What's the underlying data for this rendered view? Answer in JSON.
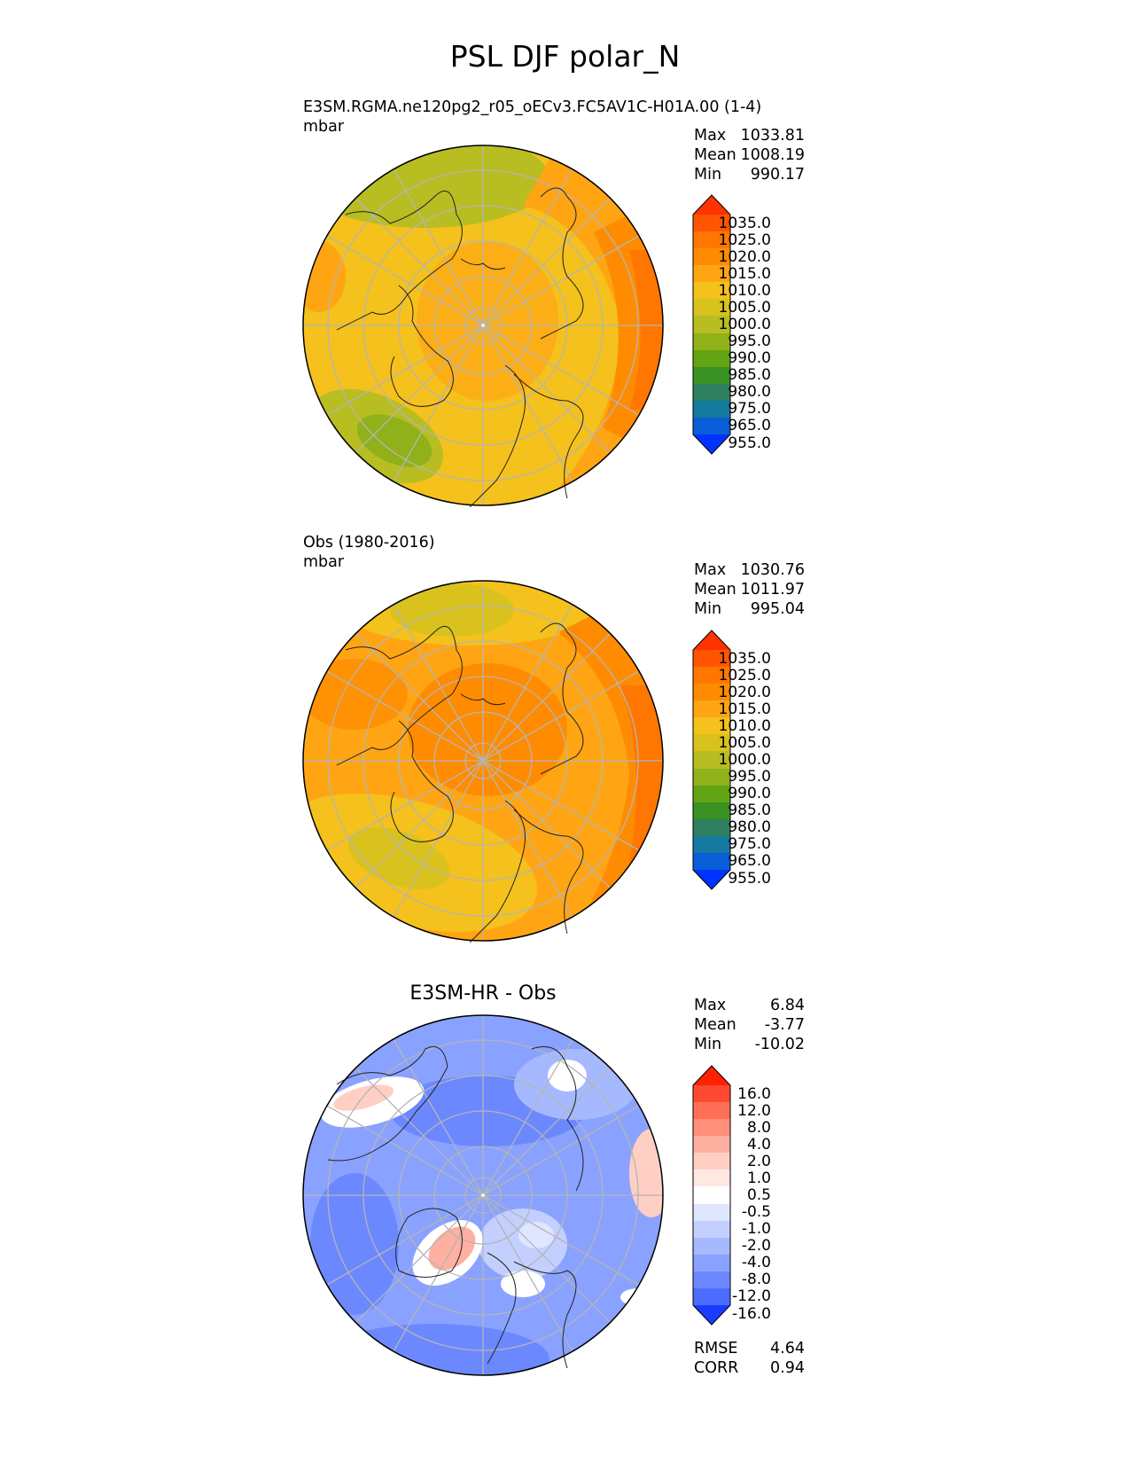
{
  "chart_data": {
    "title": "PSL DJF polar_N",
    "type": "contour-map",
    "projection": "north polar stereographic",
    "panels": [
      {
        "id": "model",
        "title_line1": "E3SM.RGMA.ne120pg2_r05_oECv3.FC5AV1C-H01A.00 (1-4)",
        "units": "mbar",
        "stats": {
          "max_label": "Max",
          "max": "1033.81",
          "mean_label": "Mean",
          "mean": "1008.19",
          "min_label": "Min",
          "min": "990.17"
        },
        "colorbar": {
          "ticks": [
            "1035.0",
            "1025.0",
            "1020.0",
            "1015.0",
            "1010.0",
            "1005.0",
            "1000.0",
            "995.0",
            "990.0",
            "985.0",
            "980.0",
            "975.0",
            "965.0",
            "955.0"
          ],
          "colors": [
            "#ff3300",
            "#ff5500",
            "#ff7700",
            "#ff8c00",
            "#ffa514",
            "#f5c11c",
            "#d9c21e",
            "#b8bd22",
            "#90b11a",
            "#62a414",
            "#3a9222",
            "#2e8060",
            "#147aa0",
            "#0a5ed8",
            "#0033ff"
          ]
        }
      },
      {
        "id": "obs",
        "title_line1": "Obs (1980-2016)",
        "units": "mbar",
        "stats": {
          "max_label": "Max",
          "max": "1030.76",
          "mean_label": "Mean",
          "mean": "1011.97",
          "min_label": "Min",
          "min": "995.04"
        },
        "colorbar": {
          "ticks": [
            "1035.0",
            "1025.0",
            "1020.0",
            "1015.0",
            "1010.0",
            "1005.0",
            "1000.0",
            "995.0",
            "990.0",
            "985.0",
            "980.0",
            "975.0",
            "965.0",
            "955.0"
          ],
          "colors": [
            "#ff3300",
            "#ff5500",
            "#ff7700",
            "#ff8c00",
            "#ffa514",
            "#f5c11c",
            "#d9c21e",
            "#b8bd22",
            "#90b11a",
            "#62a414",
            "#3a9222",
            "#2e8060",
            "#147aa0",
            "#0a5ed8",
            "#0033ff"
          ]
        }
      },
      {
        "id": "diff",
        "title_line1": "E3SM-HR - Obs",
        "stats": {
          "max_label": "Max",
          "max": "6.84",
          "mean_label": "Mean",
          "mean": "-3.77",
          "min_label": "Min",
          "min": "-10.02"
        },
        "colorbar": {
          "ticks": [
            "16.0",
            "12.0",
            "8.0",
            "4.0",
            "2.0",
            "1.0",
            "0.5",
            "-0.5",
            "-1.0",
            "-2.0",
            "-4.0",
            "-8.0",
            "-12.0",
            "-16.0"
          ],
          "colors": [
            "#ff2200",
            "#ff4a33",
            "#ff6e57",
            "#ff8f7a",
            "#ffb0a0",
            "#ffcfc4",
            "#ffe8e2",
            "#ffffff",
            "#dfe6ff",
            "#c3d0ff",
            "#a6b9ff",
            "#8aa2ff",
            "#6c88ff",
            "#4c6cff",
            "#1a3cff"
          ]
        },
        "metrics": {
          "rmse_label": "RMSE",
          "rmse": "4.64",
          "corr_label": "CORR",
          "corr": "0.94"
        }
      }
    ]
  }
}
